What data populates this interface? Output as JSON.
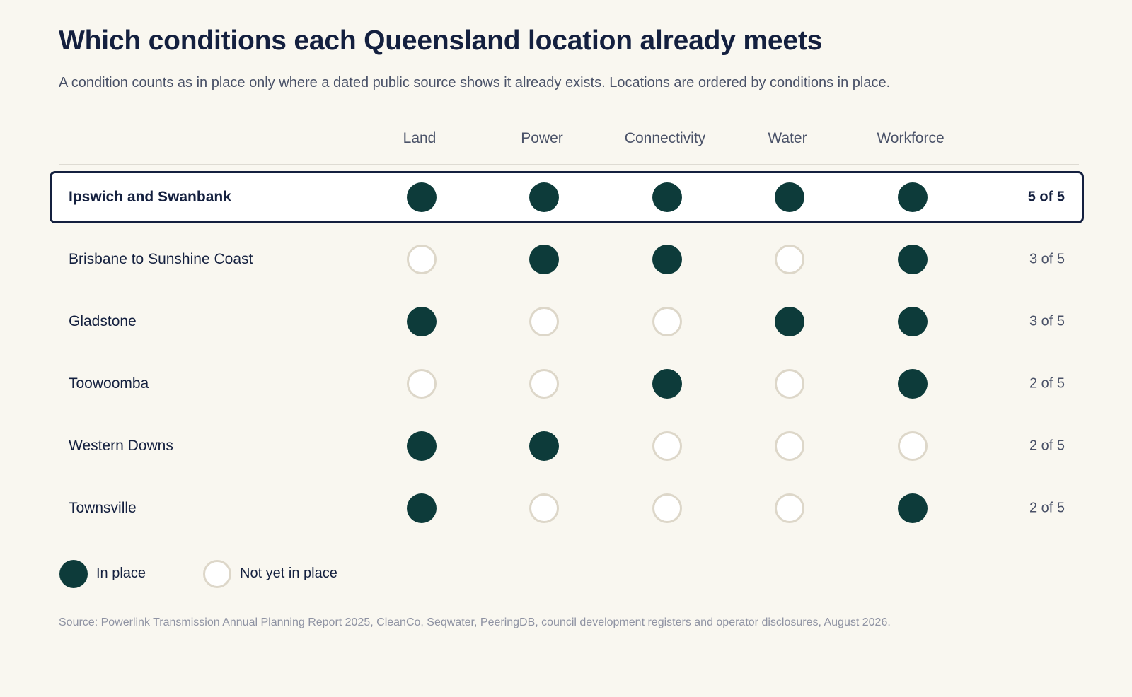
{
  "title": "Which conditions each Queensland location already meets",
  "subtitle": "A condition counts as in place only where a dated public source shows it already exists. Locations are ordered by conditions in place.",
  "colors": {
    "in_place": "#0d3b3a",
    "not_in_place_fill": "#ffffff",
    "not_in_place_border": "#ddd7c9",
    "highlight_border": "#14203f",
    "background": "#f9f7f0"
  },
  "legend": {
    "in_place": "In place",
    "not_in_place": "Not yet in place"
  },
  "source": "Source: Powerlink Transmission Annual Planning Report 2025, CleanCo, Seqwater, PeeringDB, council development registers and operator disclosures, August 2026.",
  "chart_data": {
    "type": "table",
    "columns": [
      "Land",
      "Power",
      "Connectivity",
      "Water",
      "Workforce"
    ],
    "rows": [
      {
        "location": "Ipswich and Swanbank",
        "values": [
          1,
          1,
          1,
          1,
          1
        ],
        "total": "5 of 5",
        "highlight": true
      },
      {
        "location": "Brisbane to Sunshine Coast",
        "values": [
          0,
          1,
          1,
          0,
          1
        ],
        "total": "3 of 5",
        "highlight": false
      },
      {
        "location": "Gladstone",
        "values": [
          1,
          0,
          0,
          1,
          1
        ],
        "total": "3 of 5",
        "highlight": false
      },
      {
        "location": "Toowoomba",
        "values": [
          0,
          0,
          1,
          0,
          1
        ],
        "total": "2 of 5",
        "highlight": false
      },
      {
        "location": "Western Downs",
        "values": [
          1,
          1,
          0,
          0,
          0
        ],
        "total": "2 of 5",
        "highlight": false
      },
      {
        "location": "Townsville",
        "values": [
          1,
          0,
          0,
          0,
          1
        ],
        "total": "2 of 5",
        "highlight": false
      }
    ]
  }
}
